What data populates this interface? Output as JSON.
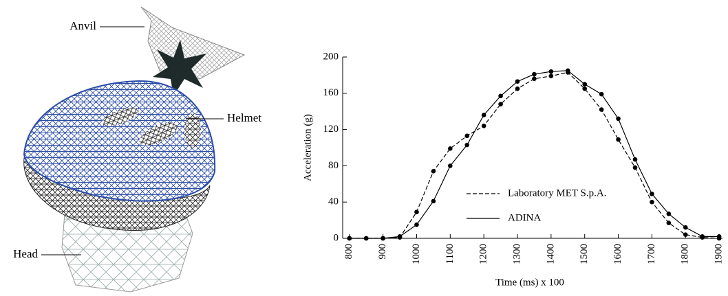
{
  "figure": {
    "labels": [
      "Anvil",
      "Helmet",
      "Head"
    ]
  },
  "chart_data": {
    "type": "line",
    "xlabel": "Time (ms) x 100",
    "ylabel": "Acceleration (g)",
    "x": [
      800,
      850,
      900,
      950,
      1000,
      1050,
      1100,
      1150,
      1200,
      1250,
      1300,
      1350,
      1400,
      1450,
      1500,
      1550,
      1600,
      1650,
      1700,
      1750,
      1800,
      1850,
      1900
    ],
    "series": [
      {
        "name": "Laboratory MET S.p.A.",
        "color": "#000000",
        "dashed": true,
        "values": [
          0,
          0,
          0,
          1,
          29,
          74,
          99,
          113,
          124,
          148,
          165,
          176,
          179,
          183,
          165,
          142,
          109,
          78,
          40,
          17,
          4,
          1,
          0
        ]
      },
      {
        "name": "ADINA",
        "color": "#000000",
        "dashed": false,
        "values": [
          0,
          0,
          0,
          2,
          15,
          41,
          80,
          103,
          136,
          157,
          173,
          181,
          184,
          185,
          170,
          159,
          132,
          87,
          49,
          27,
          12,
          2,
          2
        ]
      }
    ],
    "xlim": [
      780,
      1910
    ],
    "ylim": [
      0,
      200
    ],
    "xticks": [
      800,
      900,
      1000,
      1100,
      1200,
      1300,
      1400,
      1500,
      1600,
      1700,
      1800,
      1900
    ],
    "yticks": [
      0,
      40,
      80,
      120,
      160,
      200
    ],
    "markers": true,
    "grid": false
  }
}
